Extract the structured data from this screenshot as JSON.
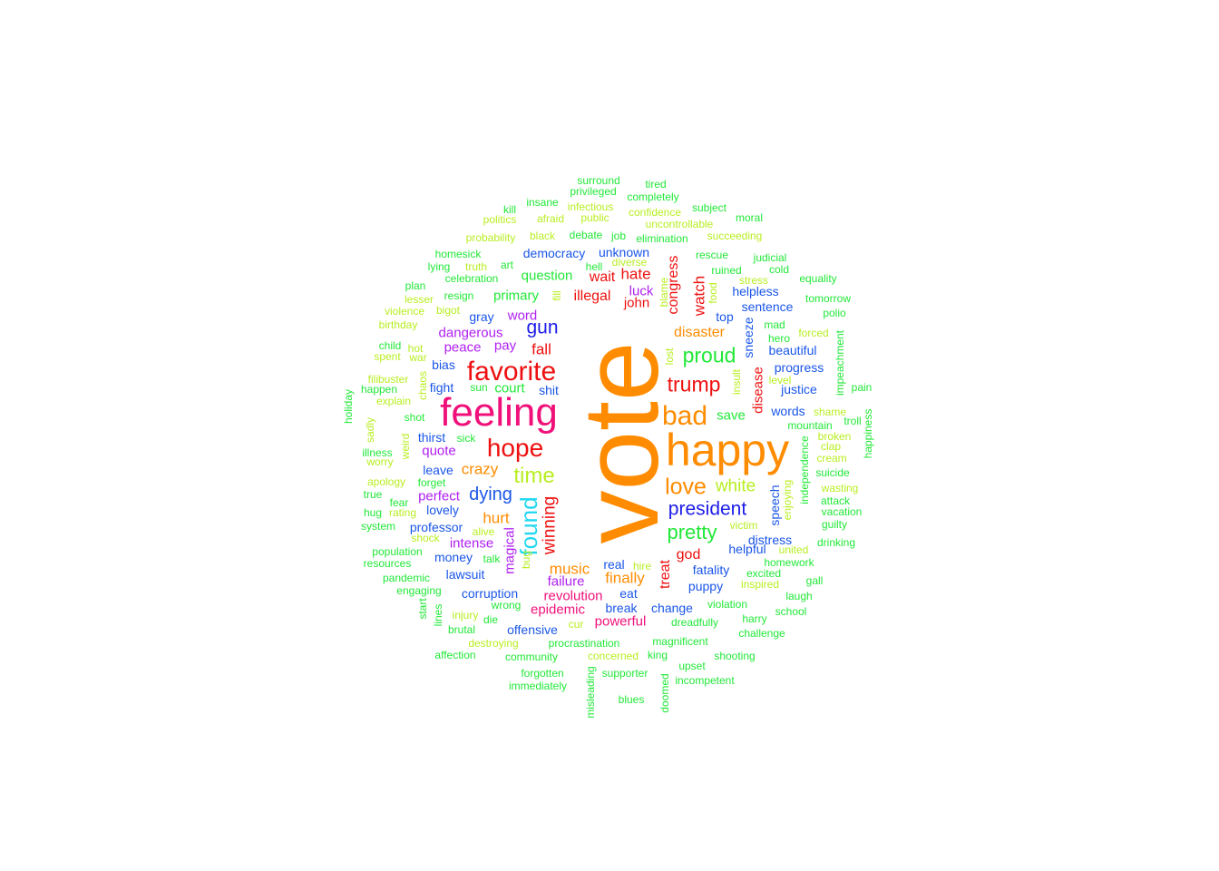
{
  "colors": {
    "orange": "#ff8c00",
    "magenta": "#f0107a",
    "red": "#ee1010",
    "violet": "#b020f0",
    "blue": "#1c1ce8",
    "royal": "#1a56e8",
    "cyan": "#20d8f0",
    "green": "#22e838",
    "lime": "#b8ee20",
    "spring": "#18e878"
  },
  "words": [
    {
      "text": "vote",
      "color": "orange",
      "vertical": true
    },
    {
      "text": "happy",
      "color": "orange"
    },
    {
      "text": "feeling",
      "color": "magenta"
    },
    {
      "text": "favorite",
      "color": "red"
    },
    {
      "text": "hope",
      "color": "red"
    },
    {
      "text": "bad",
      "color": "orange"
    },
    {
      "text": "love",
      "color": "orange"
    },
    {
      "text": "proud",
      "color": "green"
    },
    {
      "text": "time",
      "color": "lime"
    },
    {
      "text": "white",
      "color": "lime"
    },
    {
      "text": "trump",
      "color": "red"
    },
    {
      "text": "president",
      "color": "blue"
    },
    {
      "text": "pretty",
      "color": "green"
    },
    {
      "text": "found",
      "color": "cyan",
      "vertical": true
    },
    {
      "text": "gun",
      "color": "blue"
    },
    {
      "text": "dying",
      "color": "royal"
    },
    {
      "text": "winning",
      "color": "red",
      "vertical": true
    },
    {
      "text": "music",
      "color": "orange"
    },
    {
      "text": "finally",
      "color": "orange"
    },
    {
      "text": "crazy",
      "color": "orange"
    },
    {
      "text": "hurt",
      "color": "orange"
    },
    {
      "text": "disaster",
      "color": "orange"
    },
    {
      "text": "fall",
      "color": "red"
    },
    {
      "text": "hate",
      "color": "red"
    },
    {
      "text": "wait",
      "color": "red"
    },
    {
      "text": "illegal",
      "color": "red"
    },
    {
      "text": "john",
      "color": "red"
    },
    {
      "text": "watch",
      "color": "red",
      "vertical": true
    },
    {
      "text": "congress",
      "color": "red",
      "vertical": true
    },
    {
      "text": "disease",
      "color": "red",
      "vertical": true
    },
    {
      "text": "god",
      "color": "red"
    },
    {
      "text": "treat",
      "color": "red",
      "vertical": true
    },
    {
      "text": "revolution",
      "color": "magenta"
    },
    {
      "text": "epidemic",
      "color": "magenta"
    },
    {
      "text": "powerful",
      "color": "magenta"
    },
    {
      "text": "dangerous",
      "color": "violet"
    },
    {
      "text": "peace",
      "color": "violet"
    },
    {
      "text": "word",
      "color": "violet"
    },
    {
      "text": "pay",
      "color": "violet"
    },
    {
      "text": "quote",
      "color": "violet"
    },
    {
      "text": "perfect",
      "color": "violet"
    },
    {
      "text": "intense",
      "color": "violet"
    },
    {
      "text": "failure",
      "color": "violet"
    },
    {
      "text": "magical",
      "color": "violet",
      "vertical": true
    },
    {
      "text": "luck",
      "color": "violet"
    },
    {
      "text": "save",
      "color": "green"
    },
    {
      "text": "question",
      "color": "green"
    },
    {
      "text": "primary",
      "color": "green"
    },
    {
      "text": "court",
      "color": "green"
    },
    {
      "text": "democracy",
      "color": "royal"
    },
    {
      "text": "unknown",
      "color": "royal"
    },
    {
      "text": "gray",
      "color": "royal"
    },
    {
      "text": "bias",
      "color": "royal"
    },
    {
      "text": "fight",
      "color": "royal"
    },
    {
      "text": "shit",
      "color": "royal"
    },
    {
      "text": "thirst",
      "color": "royal"
    },
    {
      "text": "leave",
      "color": "royal"
    },
    {
      "text": "lovely",
      "color": "royal"
    },
    {
      "text": "professor",
      "color": "royal"
    },
    {
      "text": "money",
      "color": "royal"
    },
    {
      "text": "lawsuit",
      "color": "royal"
    },
    {
      "text": "corruption",
      "color": "royal"
    },
    {
      "text": "offensive",
      "color": "royal"
    },
    {
      "text": "real",
      "color": "royal"
    },
    {
      "text": "eat",
      "color": "royal"
    },
    {
      "text": "break",
      "color": "royal"
    },
    {
      "text": "change",
      "color": "royal"
    },
    {
      "text": "puppy",
      "color": "royal"
    },
    {
      "text": "fatality",
      "color": "royal"
    },
    {
      "text": "helpful",
      "color": "royal"
    },
    {
      "text": "distress",
      "color": "royal"
    },
    {
      "text": "speech",
      "color": "royal",
      "vertical": true
    },
    {
      "text": "words",
      "color": "royal"
    },
    {
      "text": "progress",
      "color": "royal"
    },
    {
      "text": "justice",
      "color": "royal"
    },
    {
      "text": "beautiful",
      "color": "royal"
    },
    {
      "text": "sentence",
      "color": "royal"
    },
    {
      "text": "helpless",
      "color": "royal"
    },
    {
      "text": "top",
      "color": "royal"
    },
    {
      "text": "sneeze",
      "color": "royal",
      "vertical": true
    },
    {
      "text": "surround",
      "color": "green"
    },
    {
      "text": "privileged",
      "color": "green"
    },
    {
      "text": "tired",
      "color": "green"
    },
    {
      "text": "completely",
      "color": "green"
    },
    {
      "text": "insane",
      "color": "green"
    },
    {
      "text": "infectious",
      "color": "lime"
    },
    {
      "text": "confidence",
      "color": "lime"
    },
    {
      "text": "subject",
      "color": "green"
    },
    {
      "text": "kill",
      "color": "green"
    },
    {
      "text": "politics",
      "color": "lime"
    },
    {
      "text": "afraid",
      "color": "lime"
    },
    {
      "text": "public",
      "color": "lime"
    },
    {
      "text": "uncontrollable",
      "color": "lime"
    },
    {
      "text": "moral",
      "color": "green"
    },
    {
      "text": "probability",
      "color": "lime"
    },
    {
      "text": "black",
      "color": "lime"
    },
    {
      "text": "debate",
      "color": "green"
    },
    {
      "text": "job",
      "color": "green"
    },
    {
      "text": "elimination",
      "color": "green"
    },
    {
      "text": "succeeding",
      "color": "lime"
    },
    {
      "text": "homesick",
      "color": "green"
    },
    {
      "text": "rescue",
      "color": "green"
    },
    {
      "text": "judicial",
      "color": "green"
    },
    {
      "text": "lying",
      "color": "green"
    },
    {
      "text": "truth",
      "color": "lime"
    },
    {
      "text": "art",
      "color": "green"
    },
    {
      "text": "hell",
      "color": "green"
    },
    {
      "text": "diverse",
      "color": "lime"
    },
    {
      "text": "ruined",
      "color": "green"
    },
    {
      "text": "cold",
      "color": "green"
    },
    {
      "text": "celebration",
      "color": "green"
    },
    {
      "text": "stress",
      "color": "lime"
    },
    {
      "text": "equality",
      "color": "green"
    },
    {
      "text": "plan",
      "color": "green"
    },
    {
      "text": "resign",
      "color": "green"
    },
    {
      "text": "fill",
      "color": "lime",
      "vertical": true
    },
    {
      "text": "blame",
      "color": "lime",
      "vertical": true
    },
    {
      "text": "food",
      "color": "lime",
      "vertical": true
    },
    {
      "text": "tomorrow",
      "color": "green"
    },
    {
      "text": "lesser",
      "color": "lime"
    },
    {
      "text": "violence",
      "color": "lime"
    },
    {
      "text": "bigot",
      "color": "lime"
    },
    {
      "text": "polio",
      "color": "green"
    },
    {
      "text": "birthday",
      "color": "lime"
    },
    {
      "text": "mad",
      "color": "green"
    },
    {
      "text": "hero",
      "color": "green"
    },
    {
      "text": "forced",
      "color": "lime"
    },
    {
      "text": "child",
      "color": "green"
    },
    {
      "text": "hot",
      "color": "lime"
    },
    {
      "text": "spent",
      "color": "lime"
    },
    {
      "text": "war",
      "color": "lime"
    },
    {
      "text": "impeachment",
      "color": "green",
      "vertical": true
    },
    {
      "text": "lost",
      "color": "lime",
      "vertical": true
    },
    {
      "text": "filibuster",
      "color": "lime"
    },
    {
      "text": "level",
      "color": "lime"
    },
    {
      "text": "chaos",
      "color": "lime",
      "vertical": true
    },
    {
      "text": "happen",
      "color": "green"
    },
    {
      "text": "explain",
      "color": "lime"
    },
    {
      "text": "sun",
      "color": "green"
    },
    {
      "text": "insult",
      "color": "lime",
      "vertical": true
    },
    {
      "text": "pain",
      "color": "green"
    },
    {
      "text": "holiday",
      "color": "green",
      "vertical": true
    },
    {
      "text": "shot",
      "color": "green"
    },
    {
      "text": "shame",
      "color": "lime"
    },
    {
      "text": "troll",
      "color": "green"
    },
    {
      "text": "mountain",
      "color": "green"
    },
    {
      "text": "happiness",
      "color": "green",
      "vertical": true
    },
    {
      "text": "sadly",
      "color": "lime",
      "vertical": true
    },
    {
      "text": "illness",
      "color": "green"
    },
    {
      "text": "worry",
      "color": "lime"
    },
    {
      "text": "weird",
      "color": "lime",
      "vertical": true
    },
    {
      "text": "sick",
      "color": "green"
    },
    {
      "text": "broken",
      "color": "lime"
    },
    {
      "text": "clap",
      "color": "lime"
    },
    {
      "text": "cream",
      "color": "lime"
    },
    {
      "text": "independence",
      "color": "green",
      "vertical": true
    },
    {
      "text": "suicide",
      "color": "green"
    },
    {
      "text": "apology",
      "color": "lime"
    },
    {
      "text": "forget",
      "color": "green"
    },
    {
      "text": "true",
      "color": "green"
    },
    {
      "text": "fear",
      "color": "green"
    },
    {
      "text": "enjoying",
      "color": "lime",
      "vertical": true
    },
    {
      "text": "wasting",
      "color": "lime"
    },
    {
      "text": "attack",
      "color": "green"
    },
    {
      "text": "hug",
      "color": "green"
    },
    {
      "text": "rating",
      "color": "lime"
    },
    {
      "text": "vacation",
      "color": "green"
    },
    {
      "text": "system",
      "color": "green"
    },
    {
      "text": "alive",
      "color": "lime"
    },
    {
      "text": "victim",
      "color": "lime"
    },
    {
      "text": "guilty",
      "color": "green"
    },
    {
      "text": "shock",
      "color": "lime"
    },
    {
      "text": "drinking",
      "color": "green"
    },
    {
      "text": "population",
      "color": "green"
    },
    {
      "text": "united",
      "color": "lime"
    },
    {
      "text": "talk",
      "color": "green"
    },
    {
      "text": "bug",
      "color": "lime",
      "vertical": true
    },
    {
      "text": "resources",
      "color": "green"
    },
    {
      "text": "hire",
      "color": "lime"
    },
    {
      "text": "homework",
      "color": "green"
    },
    {
      "text": "excited",
      "color": "green"
    },
    {
      "text": "gall",
      "color": "green"
    },
    {
      "text": "pandemic",
      "color": "green"
    },
    {
      "text": "inspired",
      "color": "lime"
    },
    {
      "text": "engaging",
      "color": "green"
    },
    {
      "text": "laugh",
      "color": "green"
    },
    {
      "text": "start",
      "color": "green",
      "vertical": true
    },
    {
      "text": "wrong",
      "color": "green"
    },
    {
      "text": "violation",
      "color": "green"
    },
    {
      "text": "lines",
      "color": "green",
      "vertical": true
    },
    {
      "text": "injury",
      "color": "lime"
    },
    {
      "text": "school",
      "color": "green"
    },
    {
      "text": "die",
      "color": "green"
    },
    {
      "text": "harry",
      "color": "green"
    },
    {
      "text": "cur",
      "color": "lime"
    },
    {
      "text": "dreadfully",
      "color": "green"
    },
    {
      "text": "brutal",
      "color": "green"
    },
    {
      "text": "challenge",
      "color": "green"
    },
    {
      "text": "destroying",
      "color": "lime"
    },
    {
      "text": "procrastination",
      "color": "green"
    },
    {
      "text": "magnificent",
      "color": "green"
    },
    {
      "text": "affection",
      "color": "green"
    },
    {
      "text": "community",
      "color": "green"
    },
    {
      "text": "concerned",
      "color": "lime"
    },
    {
      "text": "king",
      "color": "green"
    },
    {
      "text": "shooting",
      "color": "green"
    },
    {
      "text": "upset",
      "color": "green"
    },
    {
      "text": "forgotten",
      "color": "green"
    },
    {
      "text": "misleading",
      "color": "green",
      "vertical": true
    },
    {
      "text": "supporter",
      "color": "green"
    },
    {
      "text": "doomed",
      "color": "green",
      "vertical": true
    },
    {
      "text": "incompetent",
      "color": "green"
    },
    {
      "text": "immediately",
      "color": "green"
    },
    {
      "text": "blues",
      "color": "green"
    }
  ]
}
